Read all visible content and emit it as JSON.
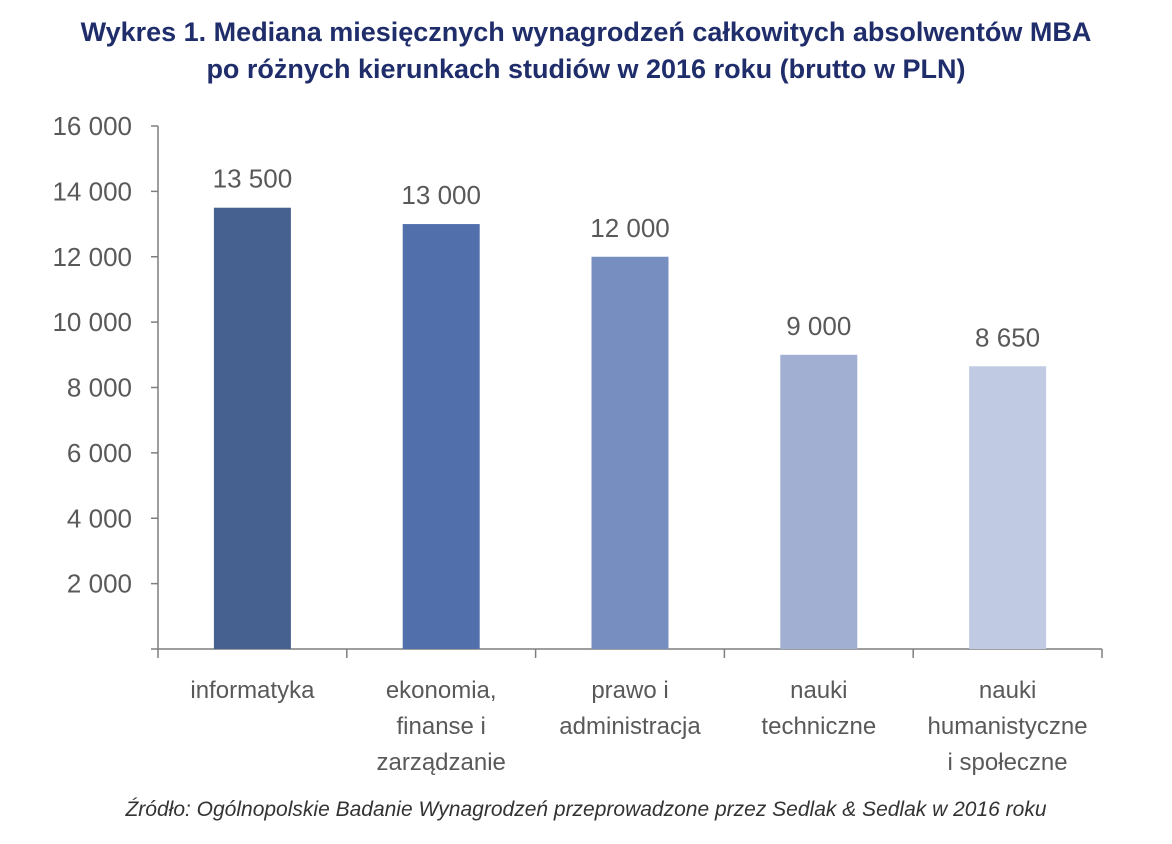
{
  "title_lines": [
    "Wykres 1. Mediana miesięcznych wynagrodzeń całkowitych absolwentów MBA",
    "po różnych kierunkach studiów w 2016 roku (brutto w PLN)"
  ],
  "source": "Źródło: Ogólnopolskie Badanie Wynagrodzeń przeprowadzone przez Sedlak & Sedlak w 2016 roku",
  "chart_data": {
    "type": "bar",
    "title": "Wykres 1. Mediana miesięcznych wynagrodzeń całkowitych absolwentów MBA po różnych kierunkach studiów w 2016 roku (brutto w PLN)",
    "categories": [
      [
        "informatyka"
      ],
      [
        "ekonomia,",
        "finanse i",
        "zarządzanie"
      ],
      [
        "prawo i",
        "administracja"
      ],
      [
        "nauki",
        "techniczne"
      ],
      [
        "nauki",
        "humanistyczne",
        "i społeczne"
      ]
    ],
    "values": [
      13500,
      13000,
      12000,
      9000,
      8650
    ],
    "data_labels": [
      "13 500",
      "13 000",
      "12 000",
      "9 000",
      "8 650"
    ],
    "bar_colors": [
      "#46608f",
      "#516fab",
      "#778fc0",
      "#a1b0d2",
      "#c0cbe3"
    ],
    "ylim": [
      0,
      16000
    ],
    "yticks": [
      0,
      2000,
      4000,
      6000,
      8000,
      10000,
      12000,
      14000,
      16000
    ],
    "ytick_labels": [
      "",
      "2 000",
      "4 000",
      "6 000",
      "8 000",
      "10 000",
      "12 000",
      "14 000",
      "16 000"
    ],
    "xlabel": "",
    "ylabel": "",
    "grid": false,
    "legend": "none"
  }
}
